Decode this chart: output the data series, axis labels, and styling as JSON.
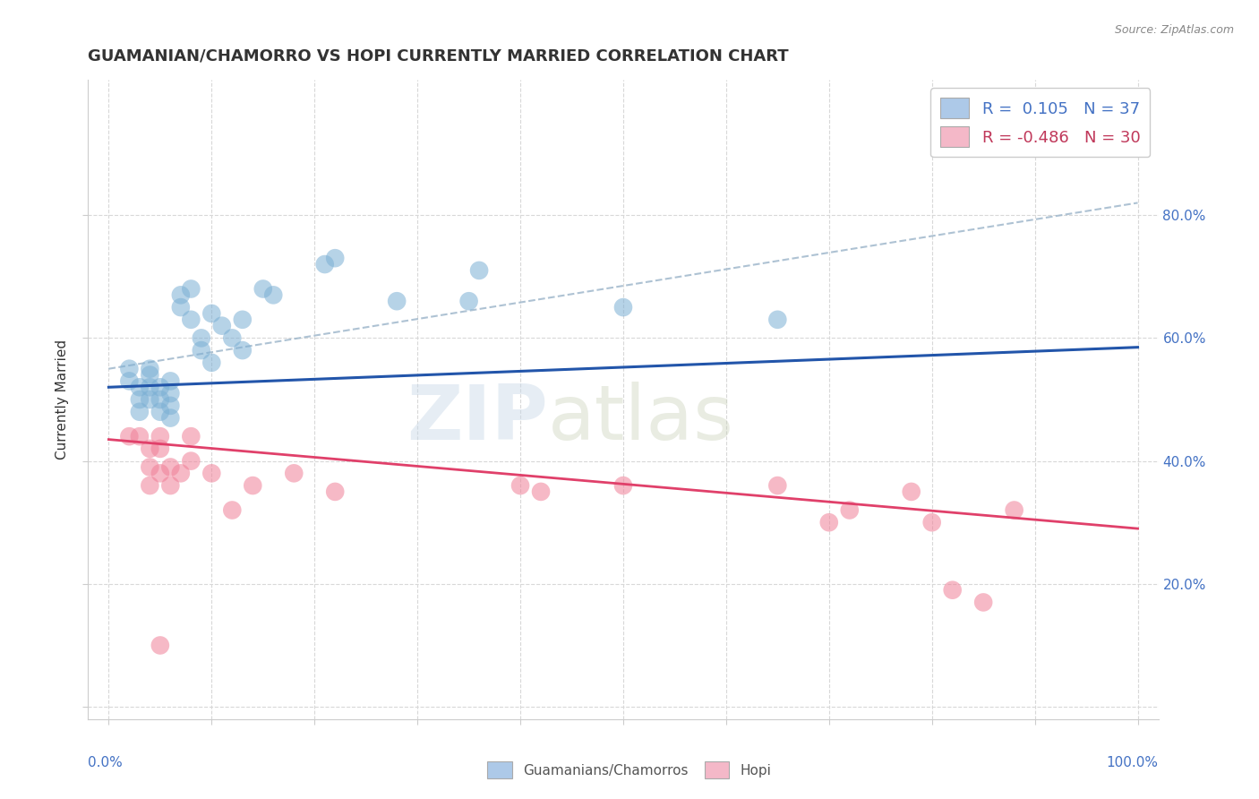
{
  "title": "GUAMANIAN/CHAMORRO VS HOPI CURRENTLY MARRIED CORRELATION CHART",
  "source": "Source: ZipAtlas.com",
  "ylabel": "Currently Married",
  "xlim": [
    -0.02,
    1.02
  ],
  "ylim": [
    -0.02,
    1.02
  ],
  "xtick_positions": [
    0.0,
    0.1,
    0.2,
    0.3,
    0.4,
    0.5,
    0.6,
    0.7,
    0.8,
    0.9,
    1.0
  ],
  "ytick_positions": [
    0.0,
    0.2,
    0.4,
    0.6,
    0.8
  ],
  "ytick_labels": [
    "",
    "20.0%",
    "40.0%",
    "60.0%",
    "80.0%"
  ],
  "x_edge_labels": [
    "0.0%",
    "100.0%"
  ],
  "legend_entries": [
    {
      "label": "R =  0.105   N = 37",
      "facecolor": "#adc9e8",
      "text_color": "#4472c4"
    },
    {
      "label": "R = -0.486   N = 30",
      "facecolor": "#f4b8c8",
      "text_color": "#c0385a"
    }
  ],
  "blue_scatter": [
    [
      0.02,
      0.53
    ],
    [
      0.02,
      0.55
    ],
    [
      0.03,
      0.5
    ],
    [
      0.03,
      0.52
    ],
    [
      0.03,
      0.48
    ],
    [
      0.04,
      0.52
    ],
    [
      0.04,
      0.5
    ],
    [
      0.04,
      0.54
    ],
    [
      0.04,
      0.55
    ],
    [
      0.05,
      0.5
    ],
    [
      0.05,
      0.48
    ],
    [
      0.05,
      0.52
    ],
    [
      0.06,
      0.51
    ],
    [
      0.06,
      0.53
    ],
    [
      0.06,
      0.49
    ],
    [
      0.06,
      0.47
    ],
    [
      0.07,
      0.65
    ],
    [
      0.07,
      0.67
    ],
    [
      0.08,
      0.68
    ],
    [
      0.08,
      0.63
    ],
    [
      0.09,
      0.6
    ],
    [
      0.09,
      0.58
    ],
    [
      0.1,
      0.64
    ],
    [
      0.1,
      0.56
    ],
    [
      0.11,
      0.62
    ],
    [
      0.12,
      0.6
    ],
    [
      0.13,
      0.63
    ],
    [
      0.13,
      0.58
    ],
    [
      0.15,
      0.68
    ],
    [
      0.16,
      0.67
    ],
    [
      0.21,
      0.72
    ],
    [
      0.22,
      0.73
    ],
    [
      0.28,
      0.66
    ],
    [
      0.35,
      0.66
    ],
    [
      0.36,
      0.71
    ],
    [
      0.5,
      0.65
    ],
    [
      0.65,
      0.63
    ]
  ],
  "pink_scatter": [
    [
      0.02,
      0.44
    ],
    [
      0.03,
      0.44
    ],
    [
      0.04,
      0.42
    ],
    [
      0.04,
      0.39
    ],
    [
      0.04,
      0.36
    ],
    [
      0.05,
      0.44
    ],
    [
      0.05,
      0.42
    ],
    [
      0.05,
      0.38
    ],
    [
      0.06,
      0.39
    ],
    [
      0.06,
      0.36
    ],
    [
      0.07,
      0.38
    ],
    [
      0.08,
      0.44
    ],
    [
      0.08,
      0.4
    ],
    [
      0.1,
      0.38
    ],
    [
      0.12,
      0.32
    ],
    [
      0.14,
      0.36
    ],
    [
      0.18,
      0.38
    ],
    [
      0.22,
      0.35
    ],
    [
      0.4,
      0.36
    ],
    [
      0.42,
      0.35
    ],
    [
      0.5,
      0.36
    ],
    [
      0.65,
      0.36
    ],
    [
      0.7,
      0.3
    ],
    [
      0.72,
      0.32
    ],
    [
      0.78,
      0.35
    ],
    [
      0.8,
      0.3
    ],
    [
      0.82,
      0.19
    ],
    [
      0.85,
      0.17
    ],
    [
      0.88,
      0.32
    ],
    [
      0.05,
      0.1
    ]
  ],
  "blue_line": [
    0.0,
    0.52,
    1.0,
    0.585
  ],
  "pink_line": [
    0.0,
    0.435,
    1.0,
    0.29
  ],
  "blue_dash": [
    0.0,
    0.55,
    1.0,
    0.82
  ],
  "blue_scatter_color": "#7bafd4",
  "pink_scatter_color": "#f08098",
  "blue_line_color": "#2255aa",
  "pink_line_color": "#e0406a",
  "blue_dash_color": "#a0b8cc",
  "background_color": "#ffffff",
  "grid_color": "#d8d8d8",
  "title_fontsize": 13,
  "axis_label_fontsize": 11,
  "tick_fontsize": 11,
  "legend_fontsize": 13
}
